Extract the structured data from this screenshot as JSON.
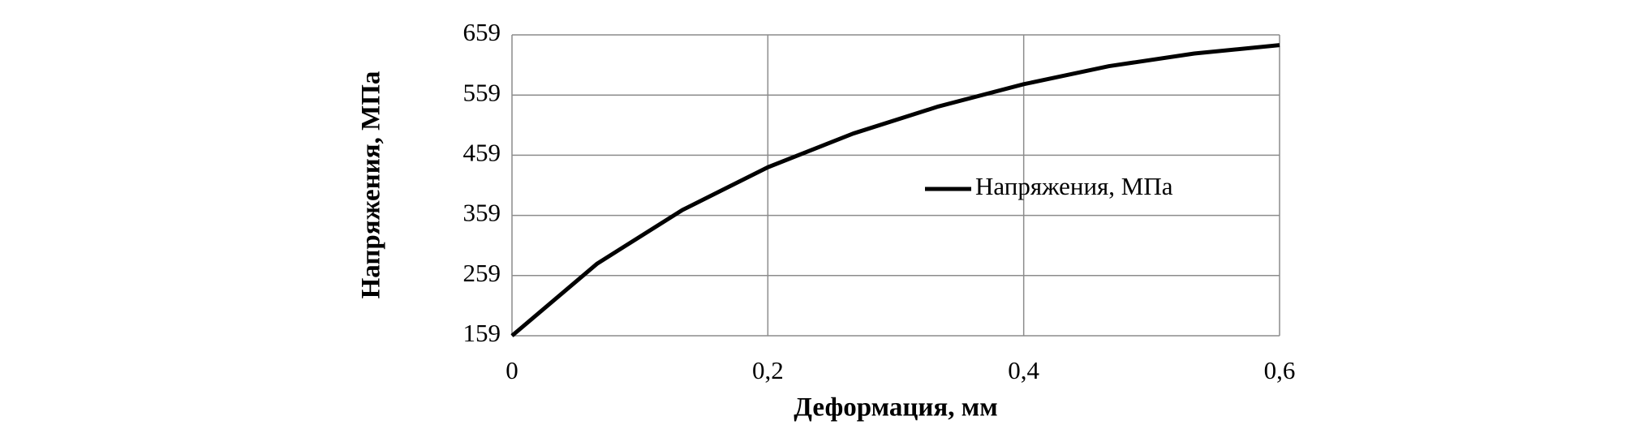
{
  "chart_data": {
    "type": "line",
    "x_label": "Деформация, мм",
    "y_label": "Напряжения, МПа",
    "x": [
      0,
      0.0667,
      0.1333,
      0.2,
      0.2667,
      0.3333,
      0.4,
      0.4667,
      0.5333,
      0.6
    ],
    "series": [
      {
        "name": "Напряжения, МПа",
        "color": "#000000",
        "values": [
          159,
          279,
          368,
          439,
          495,
          540,
          577,
          607,
          628,
          642
        ]
      }
    ],
    "xlim": [
      0,
      0.6
    ],
    "xticks": [
      0,
      {
        "value": 0.2,
        "label": "0,2"
      },
      {
        "value": 0.4,
        "label": "0,4"
      },
      {
        "value": 0.6,
        "label": "0,6"
      }
    ],
    "ylim": [
      159,
      659
    ],
    "yticks": [
      159,
      259,
      359,
      459,
      559,
      659
    ],
    "grid": true,
    "legend": "inside"
  }
}
